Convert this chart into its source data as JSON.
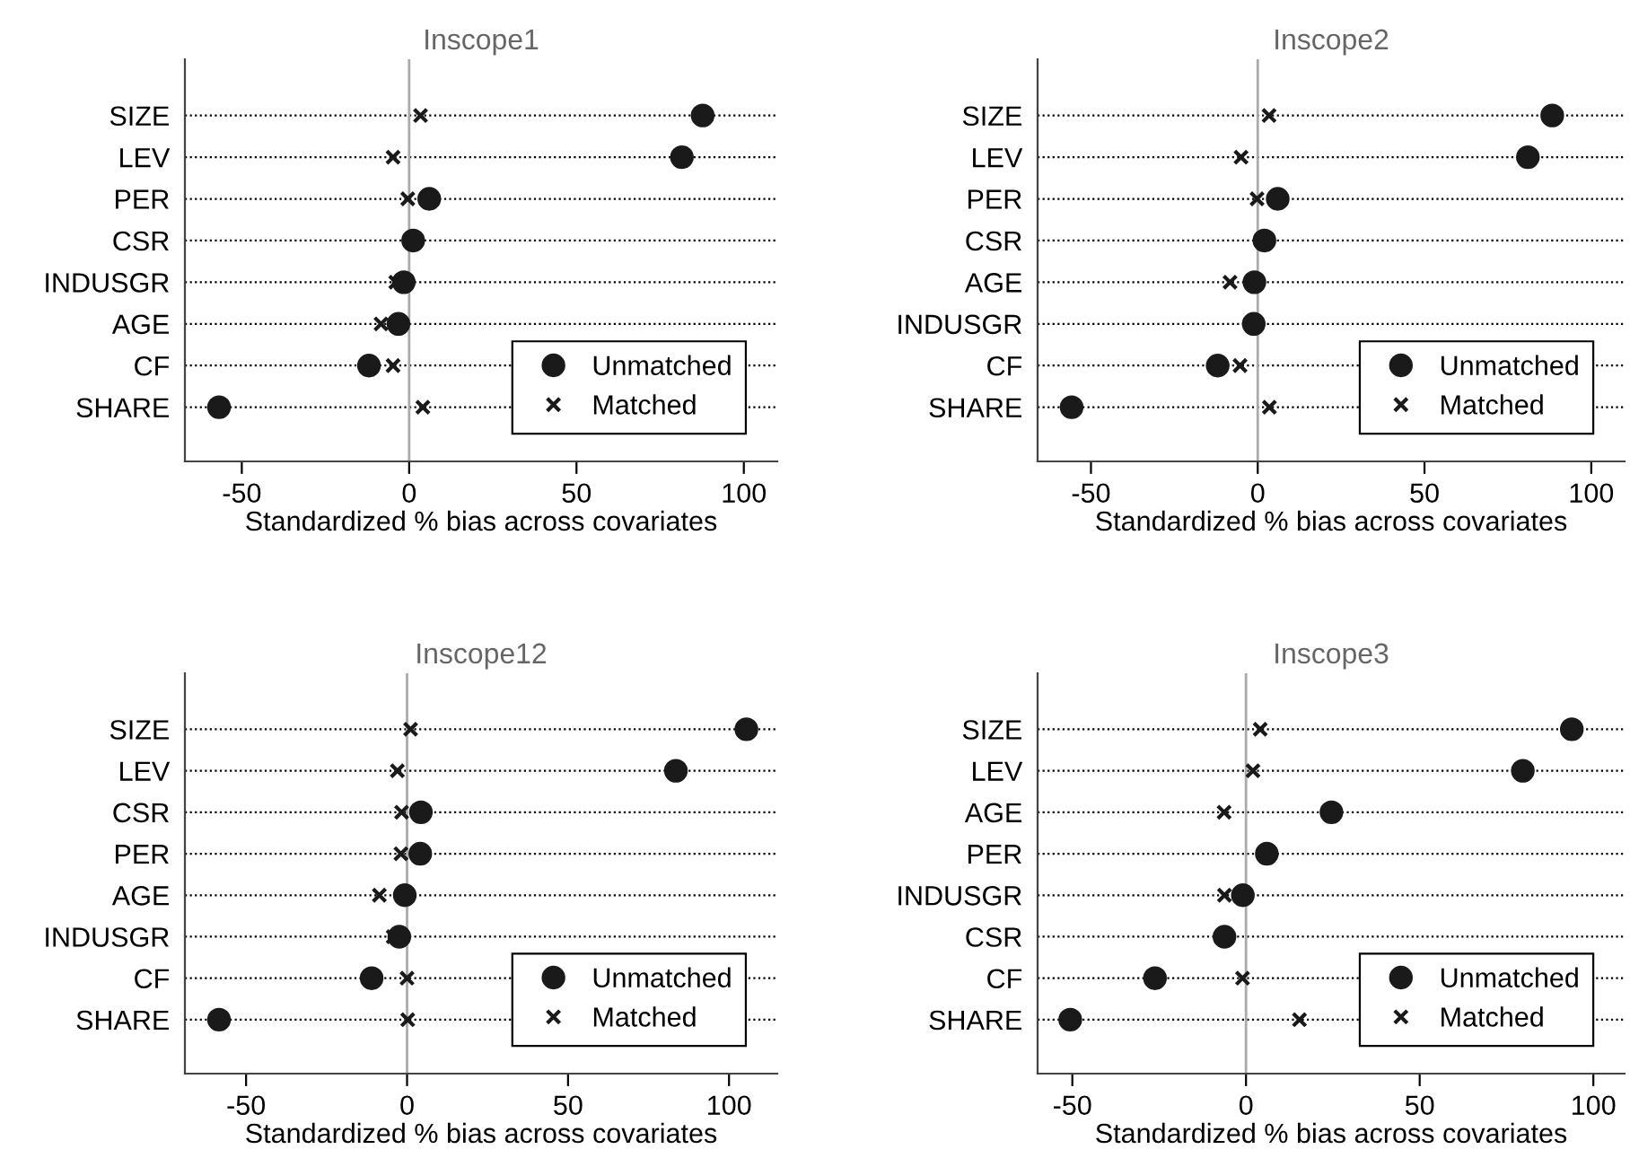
{
  "chart_data": [
    {
      "type": "scatter",
      "title": "Inscope1",
      "xlabel": "Standardized % bias across covariates",
      "orientation": "horizontal",
      "categories": [
        "SIZE",
        "LEV",
        "PER",
        "CSR",
        "INDUSGR",
        "AGE",
        "CF",
        "SHARE"
      ],
      "series": [
        {
          "name": "Unmatched",
          "color": "#1a1a1a",
          "marker": "circle",
          "values": [
            87.7,
            81.5,
            6,
            1.2,
            -1.6,
            -3.2,
            -12,
            -56.8
          ]
        },
        {
          "name": "Matched",
          "color": "#1a1a1a",
          "marker": "cross",
          "values": [
            3.4,
            -4.8,
            -0.4,
            null,
            -4,
            -8.4,
            -4.8,
            4.1
          ]
        }
      ],
      "xlim": [
        -67,
        110
      ],
      "xticks": [
        -50,
        0,
        50,
        100
      ],
      "grid": "y",
      "legend": "bottom right",
      "ref_lines": [
        {
          "axis": "x",
          "value": 0,
          "color": "#aaaaaa"
        }
      ]
    },
    {
      "type": "scatter",
      "title": "Inscope2",
      "xlabel": "Standardized % bias across covariates",
      "orientation": "horizontal",
      "categories": [
        "SIZE",
        "LEV",
        "PER",
        "CSR",
        "AGE",
        "INDUSGR",
        "CF",
        "SHARE"
      ],
      "series": [
        {
          "name": "Unmatched",
          "color": "#1a1a1a",
          "marker": "circle",
          "values": [
            88.3,
            81,
            6,
            2,
            -1,
            -1.2,
            -12,
            -55.8
          ]
        },
        {
          "name": "Matched",
          "color": "#1a1a1a",
          "marker": "cross",
          "values": [
            3.4,
            -5,
            -0.2,
            null,
            -8.3,
            null,
            -5.3,
            3.5
          ]
        }
      ],
      "xlim": [
        -66,
        110
      ],
      "xticks": [
        -50,
        0,
        50,
        100
      ],
      "grid": "y",
      "legend": "bottom right",
      "ref_lines": [
        {
          "axis": "x",
          "value": 0,
          "color": "#aaaaaa"
        }
      ]
    },
    {
      "type": "scatter",
      "title": "Inscope12",
      "xlabel": "Standardized % bias across covariates",
      "orientation": "horizontal",
      "categories": [
        "SIZE",
        "LEV",
        "CSR",
        "PER",
        "AGE",
        "INDUSGR",
        "CF",
        "SHARE"
      ],
      "series": [
        {
          "name": "Unmatched",
          "color": "#1a1a1a",
          "marker": "circle",
          "values": [
            105.4,
            83.5,
            4.3,
            4.1,
            -0.7,
            -2.4,
            -11,
            -58.4
          ]
        },
        {
          "name": "Matched",
          "color": "#1a1a1a",
          "marker": "cross",
          "values": [
            1.1,
            -3,
            -1.7,
            -1.9,
            -8.6,
            -4.3,
            0,
            0.2
          ]
        }
      ],
      "xlim": [
        -69,
        115
      ],
      "xticks": [
        -50,
        0,
        50,
        100
      ],
      "grid": "y",
      "legend": "bottom right",
      "ref_lines": [
        {
          "axis": "x",
          "value": 0,
          "color": "#aaaaaa"
        }
      ]
    },
    {
      "type": "scatter",
      "title": "Inscope3",
      "xlabel": "Standardized % bias across covariates",
      "orientation": "horizontal",
      "categories": [
        "SIZE",
        "LEV",
        "AGE",
        "PER",
        "INDUSGR",
        "CSR",
        "CF",
        "SHARE"
      ],
      "series": [
        {
          "name": "Unmatched",
          "color": "#1a1a1a",
          "marker": "circle",
          "values": [
            93.8,
            79.7,
            24.6,
            6,
            -0.9,
            -6.2,
            -26.2,
            -50.6
          ]
        },
        {
          "name": "Matched",
          "color": "#1a1a1a",
          "marker": "cross",
          "values": [
            4.1,
            2,
            -6.3,
            null,
            -6.2,
            null,
            -1,
            15.4
          ]
        }
      ],
      "xlim": [
        -60,
        109
      ],
      "xticks": [
        -50,
        0,
        50,
        100
      ],
      "grid": "y",
      "legend": "bottom right",
      "ref_lines": [
        {
          "axis": "x",
          "value": 0,
          "color": "#aaaaaa"
        }
      ]
    }
  ]
}
